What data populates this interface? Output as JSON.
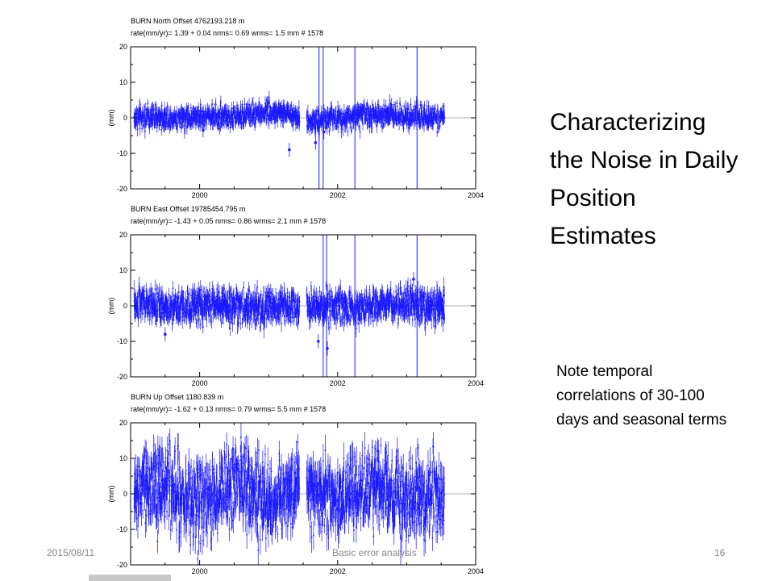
{
  "slide": {
    "title": "Characterizing the Noise in Daily Position Estimates",
    "note": "Note temporal correlations of 30-100 days and seasonal terms",
    "footer": {
      "date": "2015/08/11",
      "center": "Basic error analysis",
      "page": "16"
    }
  },
  "chart_data": [
    {
      "type": "scatter",
      "title": "BURN  North Offset   4762193.218 m",
      "stats_line": "rate(mm/yr)=    1.39 +  0.04  nrms=  0.69  wrms=    1.5 mm # 1578",
      "ylabel": "(mm)",
      "xlim": [
        1999,
        2004
      ],
      "ylim": [
        -20,
        20
      ],
      "x_ticks": [
        "2000",
        "2002",
        "2004"
      ],
      "y_ticks": [
        "20",
        "10",
        "0",
        "-10",
        "-20"
      ],
      "color": "#1a1aff",
      "gap": [
        2001.45,
        2001.55
      ],
      "data_range": [
        1999.05,
        2003.55
      ],
      "trend": [
        {
          "x": 1999.05,
          "y": 0
        },
        {
          "x": 2000.6,
          "y": 0.5
        },
        {
          "x": 2001.1,
          "y": 2
        },
        {
          "x": 2001.4,
          "y": 0.5
        },
        {
          "x": 2001.6,
          "y": -1
        },
        {
          "x": 2002.3,
          "y": 0.5
        },
        {
          "x": 2002.8,
          "y": 1
        },
        {
          "x": 2003.3,
          "y": 0
        },
        {
          "x": 2003.55,
          "y": 0
        }
      ],
      "scatter_mm": 1.5,
      "errbar_mm": 1.5,
      "vlines": [
        2001.73,
        2001.79,
        2002.25,
        2003.15
      ],
      "outliers": [
        {
          "x": 2000.05,
          "y": -3.5
        },
        {
          "x": 2001.3,
          "y": -9
        },
        {
          "x": 2001.68,
          "y": -7
        },
        {
          "x": 2001.8,
          "y": -4
        }
      ]
    },
    {
      "type": "scatter",
      "title": "BURN  East Offset  19785454.795 m",
      "stats_line": "rate(mm/yr)=   -1.43 +  0.05  nrms=  0.86  wrms=    2.1 mm # 1578",
      "ylabel": "(mm)",
      "xlim": [
        1999,
        2004
      ],
      "ylim": [
        -20,
        20
      ],
      "x_ticks": [
        "2000",
        "2002",
        "2004"
      ],
      "y_ticks": [
        "20",
        "10",
        "0",
        "-10",
        "-20"
      ],
      "color": "#1a1aff",
      "gap": [
        2001.45,
        2001.55
      ],
      "data_range": [
        1999.05,
        2003.55
      ],
      "trend": [
        {
          "x": 1999.05,
          "y": 1
        },
        {
          "x": 1999.6,
          "y": -1
        },
        {
          "x": 2000.2,
          "y": 0.5
        },
        {
          "x": 2000.8,
          "y": -0.5
        },
        {
          "x": 2001.4,
          "y": 0
        },
        {
          "x": 2002.2,
          "y": -0.5
        },
        {
          "x": 2002.9,
          "y": 0.5
        },
        {
          "x": 2003.55,
          "y": 0
        }
      ],
      "scatter_mm": 2.2,
      "errbar_mm": 2,
      "vlines": [
        2001.79,
        2001.84,
        2002.25,
        2003.15
      ],
      "outliers": [
        {
          "x": 1999.5,
          "y": -8
        },
        {
          "x": 2001.72,
          "y": -10
        },
        {
          "x": 2001.85,
          "y": -12
        },
        {
          "x": 2003.1,
          "y": 7.5
        }
      ]
    },
    {
      "type": "scatter",
      "title": "BURN  Up Offset     1180.839 m",
      "stats_line": "rate(mm/yr)=   -1.62 +  0.13  nrms=  0.79  wrms=    5.5 mm # 1578",
      "ylabel": "(mm)",
      "xlim": [
        1999,
        2004
      ],
      "ylim": [
        -20,
        20
      ],
      "x_ticks": [
        "2000",
        "2002",
        "2004"
      ],
      "y_ticks": [
        "20",
        "10",
        "0",
        "-10",
        "-20"
      ],
      "color": "#1a1aff",
      "gap": [
        2001.45,
        2001.55
      ],
      "data_range": [
        1999.05,
        2003.55
      ],
      "trend": [
        {
          "x": 1999.05,
          "y": 0
        },
        {
          "x": 1999.5,
          "y": 3
        },
        {
          "x": 2000.0,
          "y": -3
        },
        {
          "x": 2000.5,
          "y": 3
        },
        {
          "x": 2001.0,
          "y": -3
        },
        {
          "x": 2001.4,
          "y": 2
        },
        {
          "x": 2002.0,
          "y": -2
        },
        {
          "x": 2002.5,
          "y": 3
        },
        {
          "x": 2003.0,
          "y": -2
        },
        {
          "x": 2003.55,
          "y": 0
        }
      ],
      "scatter_mm": 5.5,
      "errbar_mm": 3.5,
      "vlines": [],
      "outliers": []
    }
  ]
}
